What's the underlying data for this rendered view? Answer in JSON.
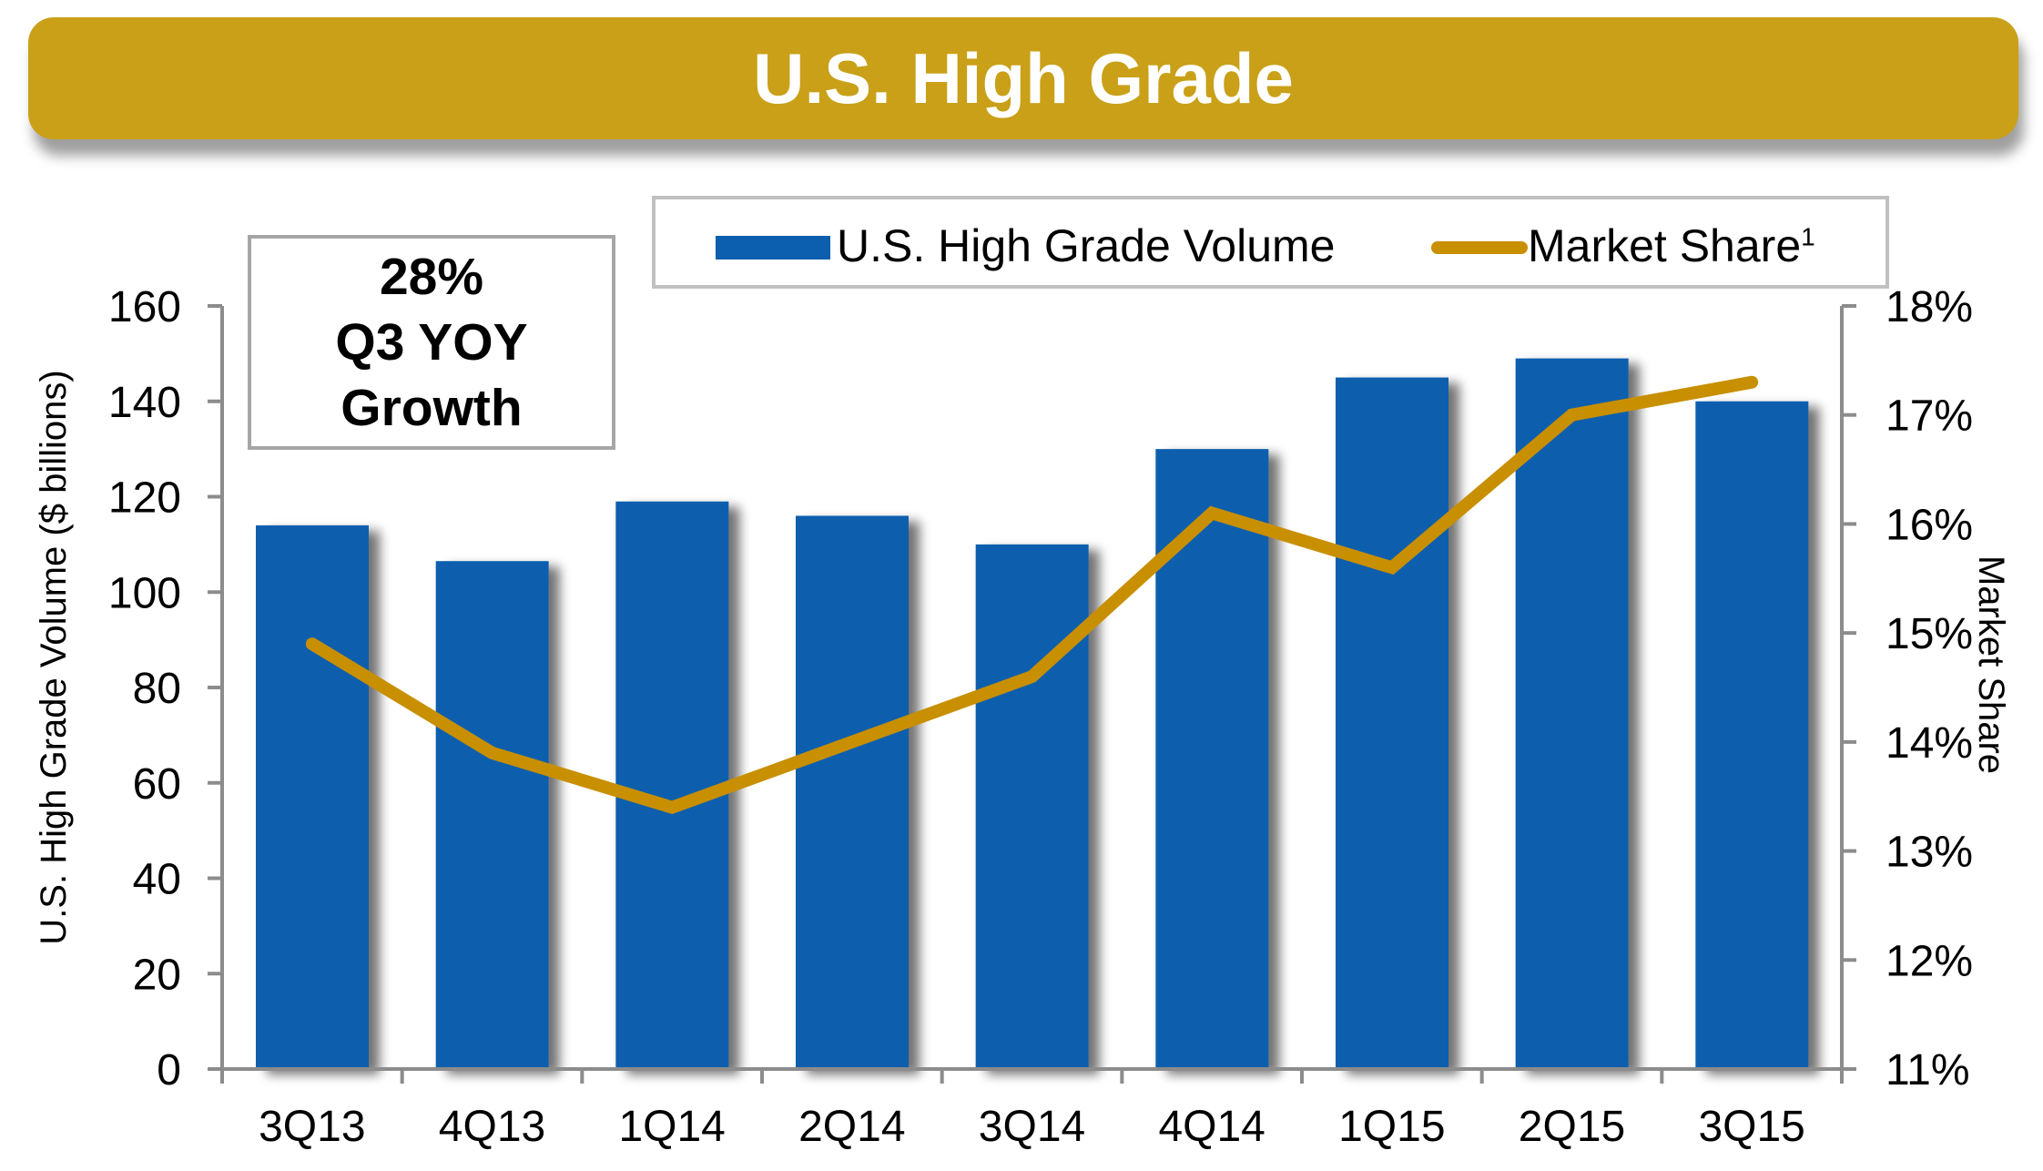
{
  "header": {
    "title": "U.S. High Grade"
  },
  "callout": {
    "line1": "28%",
    "line2": "Q3 YOY",
    "line3": "Growth"
  },
  "legend": {
    "bar_label": "U.S. High Grade Volume",
    "line_label": "Market Share",
    "line_footnote": "1"
  },
  "colors": {
    "banner": "#c9a018",
    "bar": "#0b5fae",
    "line": "#c88f00",
    "axis": "#8c8c8c"
  },
  "chart_data": {
    "type": "bar+line",
    "title": "U.S. High Grade",
    "categories": [
      "3Q13",
      "4Q13",
      "1Q14",
      "2Q14",
      "3Q14",
      "4Q14",
      "1Q15",
      "2Q15",
      "3Q15"
    ],
    "series": [
      {
        "name": "U.S. High Grade Volume",
        "type": "bar",
        "axis": "left",
        "values": [
          114,
          106.5,
          119,
          116,
          110,
          130,
          145,
          149,
          140
        ]
      },
      {
        "name": "Market Share",
        "type": "line",
        "axis": "right",
        "unit": "%",
        "values": [
          14.9,
          13.9,
          13.4,
          14.0,
          14.6,
          16.1,
          15.6,
          17.0,
          17.3
        ]
      }
    ],
    "xlabel": "",
    "ylabel": "U.S. High Grade Volume ($ billions)",
    "y2label": "Market Share",
    "ylim": [
      0,
      160
    ],
    "y2lim": [
      11,
      18
    ],
    "yticks": [
      "0",
      "20",
      "40",
      "60",
      "80",
      "100",
      "120",
      "140",
      "160"
    ],
    "y2ticks": [
      "11%",
      "12%",
      "13%",
      "14%",
      "15%",
      "16%",
      "17%",
      "18%"
    ],
    "grid": false,
    "legend_position": "top"
  }
}
